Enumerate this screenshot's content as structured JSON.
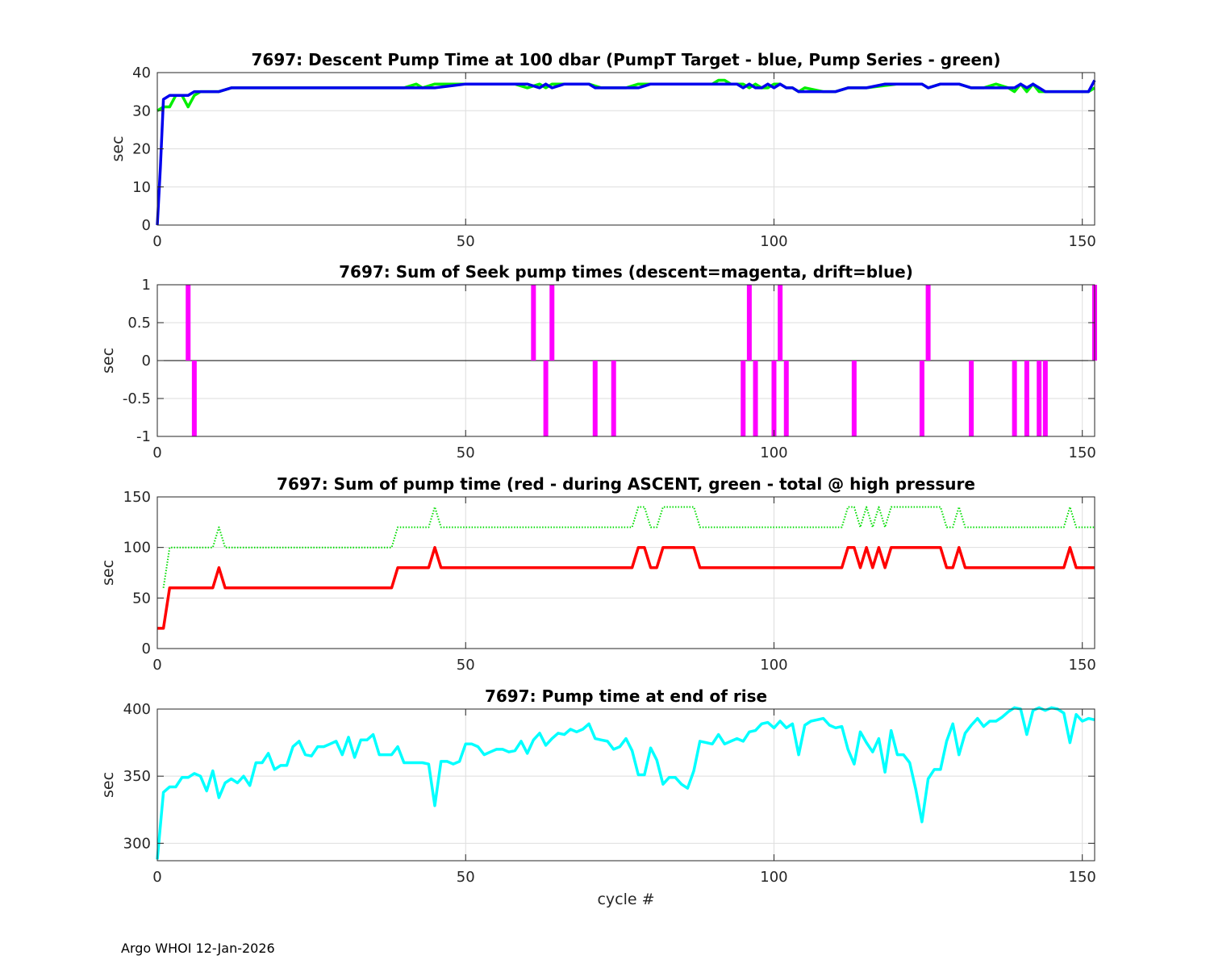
{
  "footer": "Argo WHOI 12-Jan-2026",
  "chart_data": [
    {
      "type": "line",
      "title": "7697: Descent Pump Time at 100 dbar (PumpT Target - blue, Pump Series - green)",
      "xlabel": "",
      "ylabel": "sec",
      "xlim": [
        0,
        152
      ],
      "ylim": [
        0,
        40
      ],
      "xticks": [
        0,
        50,
        100,
        150
      ],
      "yticks": [
        0,
        10,
        20,
        30,
        40
      ],
      "grid": true,
      "series": [
        {
          "color": "#00ee00",
          "x": [
            0,
            1,
            2,
            3,
            4,
            5,
            6,
            7,
            8,
            10,
            12,
            15,
            20,
            25,
            30,
            35,
            40,
            42,
            43,
            45,
            50,
            55,
            58,
            60,
            62,
            63,
            64,
            66,
            68,
            70,
            72,
            74,
            76,
            78,
            80,
            85,
            88,
            90,
            91,
            92,
            93,
            94,
            95,
            96,
            97,
            98,
            99,
            100,
            101,
            102,
            103,
            104,
            105,
            108,
            110,
            112,
            115,
            120,
            122,
            124,
            125,
            127,
            130,
            132,
            134,
            136,
            138,
            139,
            140,
            141,
            142,
            143,
            144,
            146,
            148,
            150,
            151,
            152
          ],
          "y": [
            30,
            31,
            31,
            34,
            34,
            31,
            34,
            35,
            35,
            35,
            36,
            36,
            36,
            36,
            36,
            36,
            36,
            37,
            36,
            37,
            37,
            37,
            37,
            36,
            37,
            36,
            37,
            37,
            37,
            37,
            36,
            36,
            36,
            37,
            37,
            37,
            37,
            37,
            38,
            38,
            37,
            37,
            37,
            36,
            37,
            36,
            36,
            37,
            37,
            36,
            36,
            35,
            36,
            35,
            35,
            36,
            36,
            37,
            37,
            37,
            36,
            37,
            37,
            36,
            36,
            37,
            36,
            35,
            37,
            35,
            37,
            35,
            35,
            35,
            35,
            35,
            35,
            36
          ]
        },
        {
          "color": "#0000ee",
          "x": [
            0,
            0.5,
            1,
            2,
            3,
            4,
            5,
            6,
            7,
            8,
            10,
            12,
            15,
            20,
            25,
            30,
            35,
            40,
            45,
            50,
            55,
            58,
            60,
            62,
            63,
            64,
            66,
            68,
            70,
            71,
            72,
            73,
            74,
            75,
            78,
            80,
            85,
            88,
            90,
            92,
            93,
            94,
            95,
            96,
            97,
            98,
            99,
            100,
            101,
            102,
            103,
            104,
            105,
            108,
            110,
            112,
            115,
            118,
            120,
            122,
            124,
            125,
            127,
            130,
            132,
            134,
            136,
            138,
            139,
            140,
            141,
            142,
            143,
            144,
            146,
            148,
            150,
            151,
            152
          ],
          "y": [
            0,
            15,
            33,
            34,
            34,
            34,
            34,
            35,
            35,
            35,
            35,
            36,
            36,
            36,
            36,
            36,
            36,
            36,
            36,
            37,
            37,
            37,
            37,
            36,
            37,
            36,
            37,
            37,
            37,
            36,
            36,
            36,
            36,
            36,
            36,
            37,
            37,
            37,
            37,
            37,
            37,
            37,
            36,
            37,
            36,
            36,
            37,
            36,
            37,
            36,
            36,
            35,
            35,
            35,
            35,
            36,
            36,
            37,
            37,
            37,
            37,
            36,
            37,
            37,
            36,
            36,
            36,
            36,
            36,
            37,
            36,
            37,
            36,
            35,
            35,
            35,
            35,
            35,
            38
          ]
        }
      ]
    },
    {
      "type": "bar",
      "title": "7697: Sum of Seek pump times (descent=magenta, drift=blue)",
      "xlabel": "",
      "ylabel": "sec",
      "xlim": [
        0,
        152
      ],
      "ylim": [
        -1,
        1
      ],
      "xticks": [
        0,
        50,
        100,
        150
      ],
      "yticks": [
        -1,
        -0.5,
        0,
        0.5,
        1
      ],
      "ytick_labels": [
        "-1",
        "-0.5",
        "0",
        "0.5",
        "1"
      ],
      "grid": true,
      "bar_color": "#ff00ff",
      "x": [
        5,
        6,
        61,
        63,
        64,
        71,
        74,
        95,
        96,
        97,
        100,
        101,
        102,
        113,
        124,
        125,
        132,
        139,
        141,
        143,
        144,
        152
      ],
      "values": [
        1,
        -1,
        1,
        -1,
        1,
        -1,
        -1,
        -1,
        1,
        -1,
        -1,
        1,
        -1,
        -1,
        -1,
        1,
        -1,
        -1,
        -1,
        -1,
        -1,
        1
      ]
    },
    {
      "type": "line",
      "title": "7697: Sum of pump time (red - during ASCENT, green - total @ high pressure",
      "xlabel": "",
      "ylabel": "sec",
      "xlim": [
        0,
        152
      ],
      "ylim": [
        0,
        150
      ],
      "xticks": [
        0,
        50,
        100,
        150
      ],
      "yticks": [
        0,
        50,
        100,
        150
      ],
      "grid": true,
      "series": [
        {
          "color": "#00dd00",
          "dotted": true,
          "x": [
            1,
            2,
            3,
            9,
            10,
            11,
            38,
            39,
            40,
            44,
            45,
            46,
            77,
            78,
            79,
            80,
            81,
            82,
            83,
            86,
            87,
            88,
            111,
            112,
            113,
            114,
            115,
            116,
            117,
            118,
            119,
            120,
            121,
            126,
            127,
            128,
            129,
            130,
            131,
            147,
            148,
            149,
            152
          ],
          "y": [
            60,
            100,
            100,
            100,
            120,
            100,
            100,
            120,
            120,
            120,
            140,
            120,
            120,
            140,
            140,
            120,
            120,
            140,
            140,
            140,
            140,
            120,
            120,
            140,
            140,
            120,
            140,
            120,
            140,
            120,
            140,
            140,
            140,
            140,
            140,
            120,
            120,
            140,
            120,
            120,
            140,
            120,
            120
          ]
        },
        {
          "color": "#ff0000",
          "x": [
            0,
            1,
            2,
            3,
            9,
            10,
            11,
            38,
            39,
            40,
            44,
            45,
            46,
            77,
            78,
            79,
            80,
            81,
            82,
            83,
            86,
            87,
            88,
            111,
            112,
            113,
            114,
            115,
            116,
            117,
            118,
            119,
            120,
            121,
            126,
            127,
            128,
            129,
            130,
            131,
            147,
            148,
            149,
            152
          ],
          "y": [
            20,
            20,
            60,
            60,
            60,
            80,
            60,
            60,
            80,
            80,
            80,
            100,
            80,
            80,
            100,
            100,
            80,
            80,
            100,
            100,
            100,
            100,
            80,
            80,
            100,
            100,
            80,
            100,
            80,
            100,
            80,
            100,
            100,
            100,
            100,
            100,
            80,
            80,
            100,
            80,
            80,
            100,
            80,
            80
          ]
        }
      ]
    },
    {
      "type": "line",
      "title": "7697: Pump time at end of rise",
      "xlabel": "cycle #",
      "ylabel": "sec",
      "xlim": [
        0,
        152
      ],
      "ylim": [
        287,
        400
      ],
      "xticks": [
        0,
        50,
        100,
        150
      ],
      "yticks": [
        300,
        350,
        400
      ],
      "grid": true,
      "series": [
        {
          "color": "#00ffff",
          "x": [
            0,
            1,
            2,
            3,
            4,
            5,
            6,
            7,
            8,
            9,
            10,
            11,
            12,
            13,
            14,
            15,
            16,
            17,
            18,
            19,
            20,
            21,
            22,
            23,
            24,
            25,
            26,
            27,
            28,
            29,
            30,
            31,
            32,
            33,
            34,
            35,
            36,
            37,
            38,
            39,
            40,
            41,
            42,
            43,
            44,
            45,
            46,
            47,
            48,
            49,
            50,
            51,
            52,
            53,
            54,
            55,
            56,
            57,
            58,
            59,
            60,
            61,
            62,
            63,
            64,
            65,
            66,
            67,
            68,
            69,
            70,
            71,
            72,
            73,
            74,
            75,
            76,
            77,
            78,
            79,
            80,
            81,
            82,
            83,
            84,
            85,
            86,
            87,
            88,
            89,
            90,
            91,
            92,
            93,
            94,
            95,
            96,
            97,
            98,
            99,
            100,
            101,
            102,
            103,
            104,
            105,
            106,
            107,
            108,
            109,
            110,
            111,
            112,
            113,
            114,
            115,
            116,
            117,
            118,
            119,
            120,
            121,
            122,
            123,
            124,
            125,
            126,
            127,
            128,
            129,
            130,
            131,
            132,
            133,
            134,
            135,
            136,
            137,
            138,
            139,
            140,
            141,
            142,
            143,
            144,
            145,
            146,
            147,
            148,
            149,
            150,
            151,
            152
          ],
          "y": [
            288,
            338,
            342,
            342,
            349,
            349,
            352,
            350,
            339,
            354,
            334,
            345,
            348,
            345,
            350,
            343,
            360,
            360,
            367,
            355,
            358,
            358,
            372,
            376,
            366,
            365,
            372,
            372,
            374,
            376,
            366,
            379,
            364,
            377,
            377,
            381,
            366,
            366,
            366,
            372,
            360,
            360,
            360,
            360,
            359,
            328,
            361,
            361,
            359,
            361,
            374,
            374,
            372,
            366,
            368,
            370,
            370,
            368,
            369,
            376,
            367,
            377,
            382,
            373,
            378,
            382,
            381,
            385,
            383,
            385,
            389,
            378,
            377,
            376,
            370,
            372,
            378,
            369,
            351,
            351,
            371,
            362,
            344,
            349,
            349,
            344,
            341,
            354,
            376,
            375,
            374,
            381,
            374,
            376,
            378,
            376,
            383,
            384,
            389,
            390,
            386,
            391,
            386,
            389,
            366,
            388,
            391,
            392,
            393,
            388,
            386,
            387,
            370,
            359,
            383,
            375,
            368,
            378,
            353,
            384,
            366,
            366,
            360,
            340,
            316,
            348,
            355,
            355,
            376,
            389,
            366,
            382,
            388,
            393,
            387,
            391,
            391,
            394,
            398,
            401,
            400,
            381,
            399,
            401,
            399,
            401,
            400,
            397,
            375,
            396,
            391,
            393,
            392
          ]
        }
      ]
    }
  ]
}
